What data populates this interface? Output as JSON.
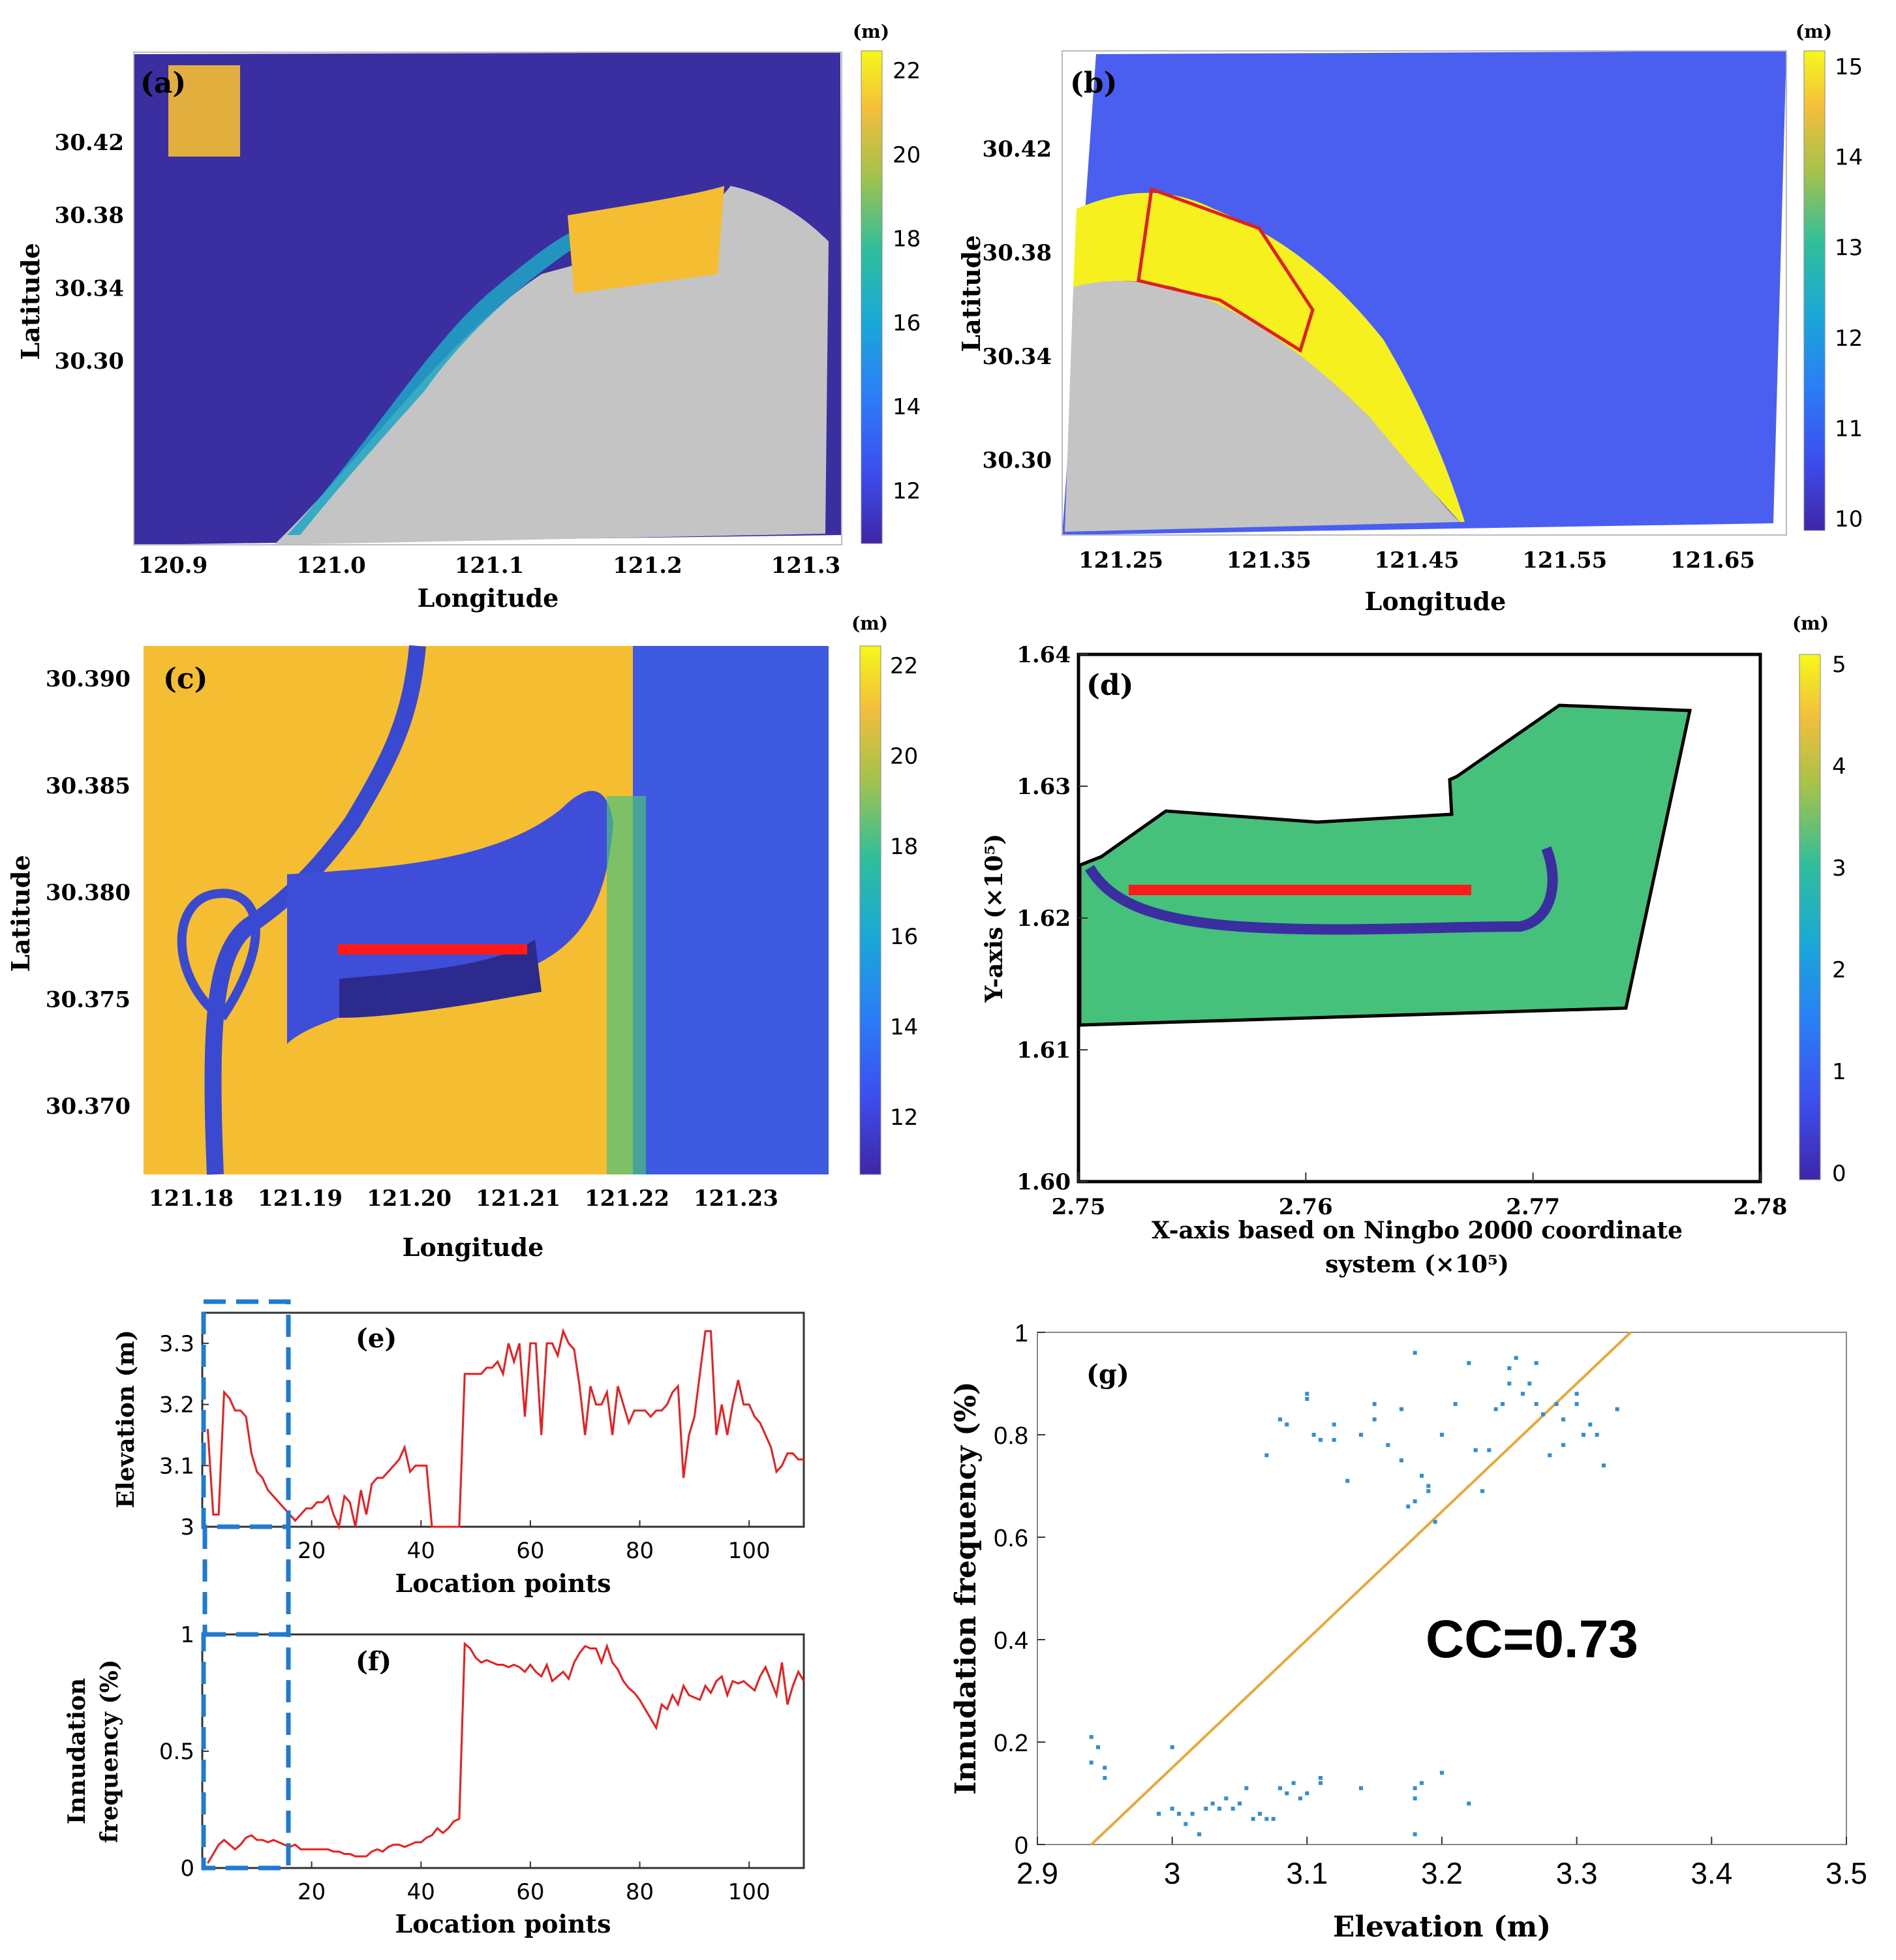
{
  "colors": {
    "dark_blue": "#3a2ea0",
    "mid_blue": "#4a5ef0",
    "teal": "#1fa6c4",
    "green": "#4cc27a",
    "yellow_orange": "#f5bd32",
    "yellow": "#f5f01e",
    "land_gray": "#c4c4c4",
    "red_line": "#ff1a1a",
    "scatter_blue": "#2f8fd4",
    "fit_line": "#e8a93a",
    "dashed_box": "#1f7ad1"
  },
  "chart_data": [
    {
      "panel": "a",
      "type": "heatmap",
      "label": "(a)",
      "xlabel": "Longitude",
      "ylabel": "Latitude",
      "xticks": [
        "120.9",
        "121.0",
        "121.1",
        "121.2",
        "121.3"
      ],
      "yticks": [
        "30.42",
        "30.38",
        "30.34",
        "30.30"
      ],
      "colorbar": {
        "unit": "(m)",
        "ticks": [
          "22",
          "20",
          "18",
          "16",
          "14",
          "12"
        ]
      }
    },
    {
      "panel": "b",
      "type": "heatmap",
      "label": "(b)",
      "xlabel": "Longitude",
      "ylabel": "Latitude",
      "xticks": [
        "121.25",
        "121.35",
        "121.45",
        "121.55",
        "121.65"
      ],
      "yticks": [
        "30.42",
        "30.38",
        "30.34",
        "30.30"
      ],
      "colorbar": {
        "unit": "(m)",
        "ticks": [
          "15",
          "14",
          "13",
          "12",
          "11",
          "10"
        ]
      }
    },
    {
      "panel": "c",
      "type": "heatmap",
      "label": "(c)",
      "xlabel": "Longitude",
      "ylabel": "Latitude",
      "xticks": [
        "121.18",
        "121.19",
        "121.20",
        "121.21",
        "121.22",
        "121.23"
      ],
      "yticks": [
        "30.390",
        "30.385",
        "30.380",
        "30.375",
        "30.370"
      ],
      "colorbar": {
        "unit": "(m)",
        "ticks": [
          "22",
          "20",
          "18",
          "16",
          "14",
          "12"
        ]
      }
    },
    {
      "panel": "d",
      "type": "heatmap",
      "label": "(d)",
      "xlabel_line1": "X-axis based on Ningbo 2000 coordinate",
      "xlabel_line2": "system (×10⁵)",
      "ylabel": "Y-axis (×10⁵)",
      "xlim": [
        2.75,
        2.78
      ],
      "ylim": [
        1.6,
        1.64
      ],
      "xticks": [
        "2.75",
        "2.76",
        "2.77",
        "2.78"
      ],
      "yticks": [
        "1.64",
        "1.63",
        "1.62",
        "1.61",
        "1.60"
      ],
      "colorbar": {
        "unit": "(m)",
        "ticks": [
          "5",
          "4",
          "3",
          "2",
          "1",
          "0"
        ]
      }
    },
    {
      "panel": "e",
      "type": "line",
      "label": "(e)",
      "xlabel": "Location points",
      "ylabel": "Elevation (m)",
      "xlim": [
        0,
        110
      ],
      "ylim": [
        3.0,
        3.35
      ],
      "xticks": [
        "20",
        "40",
        "60",
        "80",
        "100"
      ],
      "yticks": [
        "3.3",
        "3.2",
        "3.1",
        "3"
      ],
      "x": [
        1,
        2,
        3,
        4,
        5,
        6,
        7,
        8,
        9,
        10,
        11,
        12,
        13,
        14,
        15,
        16,
        17,
        18,
        19,
        20,
        21,
        22,
        23,
        24,
        25,
        26,
        27,
        28,
        29,
        30,
        31,
        32,
        33,
        34,
        35,
        36,
        37,
        38,
        39,
        40,
        41,
        42,
        43,
        44,
        45,
        46,
        47,
        48,
        49,
        50,
        51,
        52,
        53,
        54,
        55,
        56,
        57,
        58,
        59,
        60,
        61,
        62,
        63,
        64,
        65,
        66,
        67,
        68,
        69,
        70,
        71,
        72,
        73,
        74,
        75,
        76,
        77,
        78,
        79,
        80,
        81,
        82,
        83,
        84,
        85,
        86,
        87,
        88,
        89,
        90,
        91,
        92,
        93,
        94,
        95,
        96,
        97,
        98,
        99,
        100,
        101,
        102,
        103,
        104,
        105,
        106,
        107,
        108,
        109,
        110
      ],
      "y": [
        3.16,
        3.02,
        3.02,
        3.22,
        3.21,
        3.19,
        3.19,
        3.18,
        3.12,
        3.09,
        3.08,
        3.06,
        3.05,
        3.04,
        3.03,
        3.02,
        3.01,
        3.02,
        3.03,
        3.03,
        3.04,
        3.04,
        3.05,
        3.02,
        3.0,
        3.05,
        3.04,
        3.0,
        3.06,
        3.02,
        3.07,
        3.08,
        3.08,
        3.09,
        3.1,
        3.11,
        3.13,
        3.09,
        3.1,
        3.1,
        3.1,
        3.0,
        3.0,
        3.0,
        3.0,
        3.0,
        3.0,
        3.25,
        3.25,
        3.25,
        3.25,
        3.26,
        3.26,
        3.27,
        3.25,
        3.3,
        3.27,
        3.3,
        3.18,
        3.3,
        3.3,
        3.15,
        3.3,
        3.3,
        3.28,
        3.32,
        3.3,
        3.29,
        3.23,
        3.15,
        3.23,
        3.2,
        3.2,
        3.22,
        3.15,
        3.23,
        3.2,
        3.17,
        3.19,
        3.19,
        3.19,
        3.18,
        3.19,
        3.19,
        3.2,
        3.22,
        3.23,
        3.08,
        3.15,
        3.18,
        3.25,
        3.32,
        3.32,
        3.15,
        3.2,
        3.15,
        3.2,
        3.24,
        3.2,
        3.2,
        3.18,
        3.17,
        3.15,
        3.13,
        3.09,
        3.1,
        3.12,
        3.12,
        3.11,
        3.11
      ]
    },
    {
      "panel": "f",
      "type": "line",
      "label": "(f)",
      "xlabel": "Location points",
      "ylabel_line1": "Innudation",
      "ylabel_line2": "frequency (%)",
      "xlim": [
        0,
        110
      ],
      "ylim": [
        0,
        1
      ],
      "xticks": [
        "20",
        "40",
        "60",
        "80",
        "100"
      ],
      "yticks": [
        "1",
        "0.5",
        "0"
      ],
      "x": [
        1,
        2,
        3,
        4,
        5,
        6,
        7,
        8,
        9,
        10,
        11,
        12,
        13,
        14,
        15,
        16,
        17,
        18,
        19,
        20,
        21,
        22,
        23,
        24,
        25,
        26,
        27,
        28,
        29,
        30,
        31,
        32,
        33,
        34,
        35,
        36,
        37,
        38,
        39,
        40,
        41,
        42,
        43,
        44,
        45,
        46,
        47,
        48,
        49,
        50,
        51,
        52,
        53,
        54,
        55,
        56,
        57,
        58,
        59,
        60,
        61,
        62,
        63,
        64,
        65,
        66,
        67,
        68,
        69,
        70,
        71,
        72,
        73,
        74,
        75,
        76,
        77,
        78,
        79,
        80,
        81,
        82,
        83,
        84,
        85,
        86,
        87,
        88,
        89,
        90,
        91,
        92,
        93,
        94,
        95,
        96,
        97,
        98,
        99,
        100,
        101,
        102,
        103,
        104,
        105,
        106,
        107,
        108,
        109,
        110
      ],
      "y": [
        0.02,
        0.06,
        0.1,
        0.12,
        0.1,
        0.08,
        0.1,
        0.13,
        0.14,
        0.12,
        0.12,
        0.11,
        0.12,
        0.11,
        0.1,
        0.09,
        0.1,
        0.08,
        0.08,
        0.08,
        0.08,
        0.08,
        0.08,
        0.07,
        0.07,
        0.06,
        0.06,
        0.05,
        0.05,
        0.05,
        0.07,
        0.08,
        0.07,
        0.09,
        0.1,
        0.1,
        0.09,
        0.1,
        0.11,
        0.11,
        0.13,
        0.14,
        0.17,
        0.15,
        0.17,
        0.2,
        0.21,
        0.96,
        0.94,
        0.9,
        0.88,
        0.89,
        0.88,
        0.87,
        0.87,
        0.86,
        0.87,
        0.86,
        0.84,
        0.87,
        0.84,
        0.82,
        0.87,
        0.8,
        0.82,
        0.84,
        0.81,
        0.88,
        0.92,
        0.95,
        0.94,
        0.94,
        0.88,
        0.95,
        0.88,
        0.85,
        0.8,
        0.77,
        0.75,
        0.72,
        0.68,
        0.64,
        0.6,
        0.7,
        0.68,
        0.74,
        0.7,
        0.78,
        0.74,
        0.73,
        0.72,
        0.78,
        0.75,
        0.8,
        0.82,
        0.74,
        0.8,
        0.79,
        0.8,
        0.78,
        0.76,
        0.82,
        0.86,
        0.8,
        0.74,
        0.88,
        0.7,
        0.78,
        0.84,
        0.8
      ]
    },
    {
      "panel": "g",
      "type": "scatter",
      "label": "(g)",
      "xlabel": "Elevation (m)",
      "ylabel": "Innudation frequency (%)",
      "annotation": "CC=0.73",
      "xlim": [
        2.9,
        3.5
      ],
      "ylim": [
        0,
        1
      ],
      "xticks": [
        "2.9",
        "3",
        "3.1",
        "3.2",
        "3.3",
        "3.4",
        "3.5"
      ],
      "yticks": [
        "1",
        "0.8",
        "0.6",
        "0.4",
        "0.2",
        "0"
      ],
      "fit_line": [
        [
          2.94,
          0.0
        ],
        [
          3.34,
          1.0
        ]
      ],
      "points": [
        [
          2.94,
          0.21
        ],
        [
          2.945,
          0.19
        ],
        [
          2.94,
          0.16
        ],
        [
          2.95,
          0.15
        ],
        [
          2.95,
          0.13
        ],
        [
          2.99,
          0.06
        ],
        [
          3.0,
          0.19
        ],
        [
          3.0,
          0.07
        ],
        [
          3.005,
          0.06
        ],
        [
          3.01,
          0.04
        ],
        [
          3.015,
          0.06
        ],
        [
          3.02,
          0.02
        ],
        [
          3.025,
          0.07
        ],
        [
          3.03,
          0.08
        ],
        [
          3.035,
          0.07
        ],
        [
          3.04,
          0.09
        ],
        [
          3.045,
          0.07
        ],
        [
          3.05,
          0.08
        ],
        [
          3.055,
          0.11
        ],
        [
          3.06,
          0.05
        ],
        [
          3.065,
          0.06
        ],
        [
          3.07,
          0.05
        ],
        [
          3.075,
          0.05
        ],
        [
          3.08,
          0.11
        ],
        [
          3.085,
          0.1
        ],
        [
          3.09,
          0.12
        ],
        [
          3.095,
          0.09
        ],
        [
          3.1,
          0.1
        ],
        [
          3.11,
          0.13
        ],
        [
          3.11,
          0.12
        ],
        [
          3.14,
          0.11
        ],
        [
          3.18,
          0.09
        ],
        [
          3.18,
          0.11
        ],
        [
          3.185,
          0.12
        ],
        [
          3.18,
          0.02
        ],
        [
          3.2,
          0.14
        ],
        [
          3.22,
          0.08
        ],
        [
          3.07,
          0.76
        ],
        [
          3.08,
          0.83
        ],
        [
          3.085,
          0.82
        ],
        [
          3.1,
          0.87
        ],
        [
          3.1,
          0.88
        ],
        [
          3.105,
          0.8
        ],
        [
          3.11,
          0.79
        ],
        [
          3.12,
          0.82
        ],
        [
          3.12,
          0.79
        ],
        [
          3.13,
          0.71
        ],
        [
          3.14,
          0.8
        ],
        [
          3.15,
          0.86
        ],
        [
          3.15,
          0.83
        ],
        [
          3.16,
          0.78
        ],
        [
          3.17,
          0.75
        ],
        [
          3.17,
          0.85
        ],
        [
          3.175,
          0.66
        ],
        [
          3.18,
          0.67
        ],
        [
          3.185,
          0.72
        ],
        [
          3.19,
          0.7
        ],
        [
          3.19,
          0.69
        ],
        [
          3.195,
          0.63
        ],
        [
          3.18,
          0.96
        ],
        [
          3.2,
          0.8
        ],
        [
          3.21,
          0.86
        ],
        [
          3.22,
          0.94
        ],
        [
          3.225,
          0.77
        ],
        [
          3.23,
          0.69
        ],
        [
          3.235,
          0.77
        ],
        [
          3.24,
          0.85
        ],
        [
          3.245,
          0.86
        ],
        [
          3.25,
          0.9
        ],
        [
          3.25,
          0.93
        ],
        [
          3.255,
          0.95
        ],
        [
          3.26,
          0.88
        ],
        [
          3.265,
          0.9
        ],
        [
          3.27,
          0.86
        ],
        [
          3.27,
          0.94
        ],
        [
          3.275,
          0.84
        ],
        [
          3.28,
          0.76
        ],
        [
          3.285,
          0.86
        ],
        [
          3.29,
          0.78
        ],
        [
          3.29,
          0.83
        ],
        [
          3.3,
          0.88
        ],
        [
          3.3,
          0.86
        ],
        [
          3.305,
          0.8
        ],
        [
          3.31,
          0.82
        ],
        [
          3.315,
          0.8
        ],
        [
          3.32,
          0.74
        ],
        [
          3.33,
          0.85
        ]
      ]
    }
  ]
}
